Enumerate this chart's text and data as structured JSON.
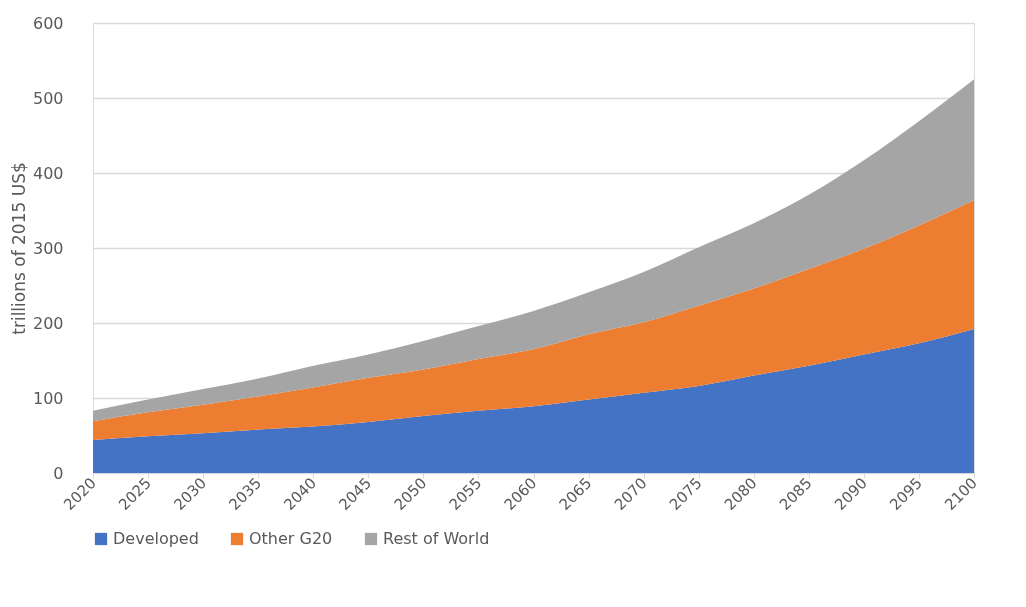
{
  "chart_data": {
    "type": "area",
    "stacked": true,
    "ylabel": "trillions of 2015 US$",
    "x": [
      2020,
      2025,
      2030,
      2035,
      2040,
      2045,
      2050,
      2055,
      2060,
      2065,
      2070,
      2075,
      2080,
      2085,
      2090,
      2095,
      2100
    ],
    "series": [
      {
        "name": "Developed",
        "color": "#4472c4",
        "values": [
          44,
          49,
          53,
          58,
          62,
          68,
          76,
          83,
          89,
          98,
          107,
          116,
          130,
          143,
          158,
          173,
          192
        ]
      },
      {
        "name": "Other G20",
        "color": "#ed7d31",
        "values": [
          25,
          32,
          38,
          44,
          52,
          59,
          62,
          69,
          76,
          87,
          94,
          107,
          116,
          129,
          141,
          157,
          172
        ]
      },
      {
        "name": "Rest of World",
        "color": "#a5a5a5",
        "values": [
          14,
          17,
          21,
          24,
          29,
          31,
          38,
          44,
          51,
          56,
          67,
          78,
          87,
          99,
          118,
          139,
          161
        ]
      }
    ],
    "xlim": [
      2020,
      2100
    ],
    "xticks": [
      2020,
      2025,
      2030,
      2035,
      2040,
      2045,
      2050,
      2055,
      2060,
      2065,
      2070,
      2075,
      2080,
      2085,
      2090,
      2095,
      2100
    ],
    "ylim": [
      0,
      600
    ],
    "yticks": [
      0,
      100,
      200,
      300,
      400,
      500,
      600
    ],
    "grid": "y",
    "legend": "bottom"
  }
}
